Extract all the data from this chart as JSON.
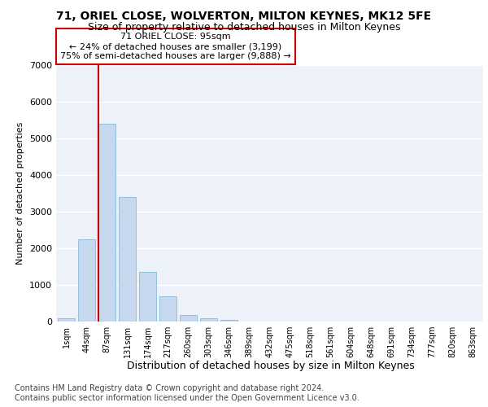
{
  "title1": "71, ORIEL CLOSE, WOLVERTON, MILTON KEYNES, MK12 5FE",
  "title2": "Size of property relative to detached houses in Milton Keynes",
  "xlabel": "Distribution of detached houses by size in Milton Keynes",
  "ylabel": "Number of detached properties",
  "footnote": "Contains HM Land Registry data © Crown copyright and database right 2024.\nContains public sector information licensed under the Open Government Licence v3.0.",
  "categories": [
    "1sqm",
    "44sqm",
    "87sqm",
    "131sqm",
    "174sqm",
    "217sqm",
    "260sqm",
    "303sqm",
    "346sqm",
    "389sqm",
    "432sqm",
    "475sqm",
    "518sqm",
    "561sqm",
    "604sqm",
    "648sqm",
    "691sqm",
    "734sqm",
    "777sqm",
    "820sqm",
    "863sqm"
  ],
  "values": [
    80,
    2250,
    5400,
    3400,
    1350,
    700,
    180,
    100,
    50,
    0,
    0,
    0,
    0,
    0,
    0,
    0,
    0,
    0,
    0,
    0,
    0
  ],
  "bar_color": "#c5d8ee",
  "bar_edgecolor": "#7aafd4",
  "property_line_label": "71 ORIEL CLOSE: 95sqm",
  "annotation_line1": "← 24% of detached houses are smaller (3,199)",
  "annotation_line2": "75% of semi-detached houses are larger (9,888) →",
  "ylim": [
    0,
    7000
  ],
  "yticks": [
    0,
    1000,
    2000,
    3000,
    4000,
    5000,
    6000,
    7000
  ],
  "title1_fontsize": 10,
  "title2_fontsize": 9,
  "xlabel_fontsize": 9,
  "ylabel_fontsize": 8,
  "annotation_fontsize": 8,
  "footnote_fontsize": 7,
  "bg_color": "#edf2fa",
  "grid_color": "#ffffff",
  "box_edgecolor": "#cc0000",
  "property_line_color": "#cc0000",
  "prop_line_index": 2
}
